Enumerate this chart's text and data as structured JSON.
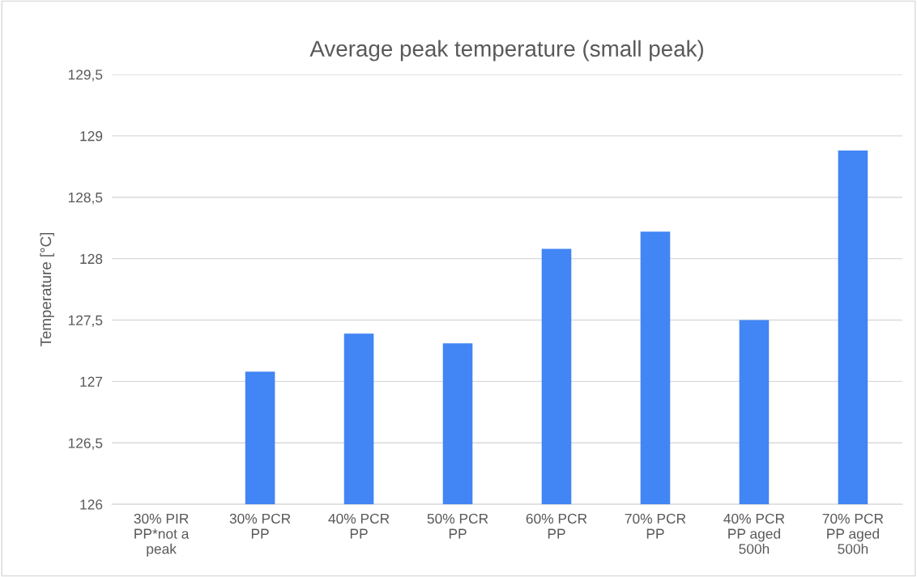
{
  "chart_data": {
    "type": "bar",
    "title": "Average peak temperature (small peak)",
    "ylabel": "Temperature [°C]",
    "categories": [
      "30% PIR\nPP*not a\npeak",
      "30% PCR\nPP",
      "40% PCR\nPP",
      "50% PCR\nPP",
      "60% PCR\nPP",
      "70% PCR\nPP",
      "40% PCR\nPP aged\n500h",
      "70% PCR\nPP aged\n500h"
    ],
    "values": [
      null,
      127.08,
      127.39,
      127.31,
      128.08,
      128.22,
      127.5,
      128.88
    ],
    "color": "#4285f4",
    "ylim": [
      126,
      129.5
    ],
    "yticks": [
      126,
      {
        "value": 126.5,
        "label": "126,5"
      },
      127,
      {
        "value": 127.5,
        "label": "127,5"
      },
      128,
      {
        "value": 128.5,
        "label": "128,5"
      },
      129,
      {
        "value": 129.5,
        "label": "129,5"
      }
    ],
    "grid": "y",
    "legend": false
  }
}
